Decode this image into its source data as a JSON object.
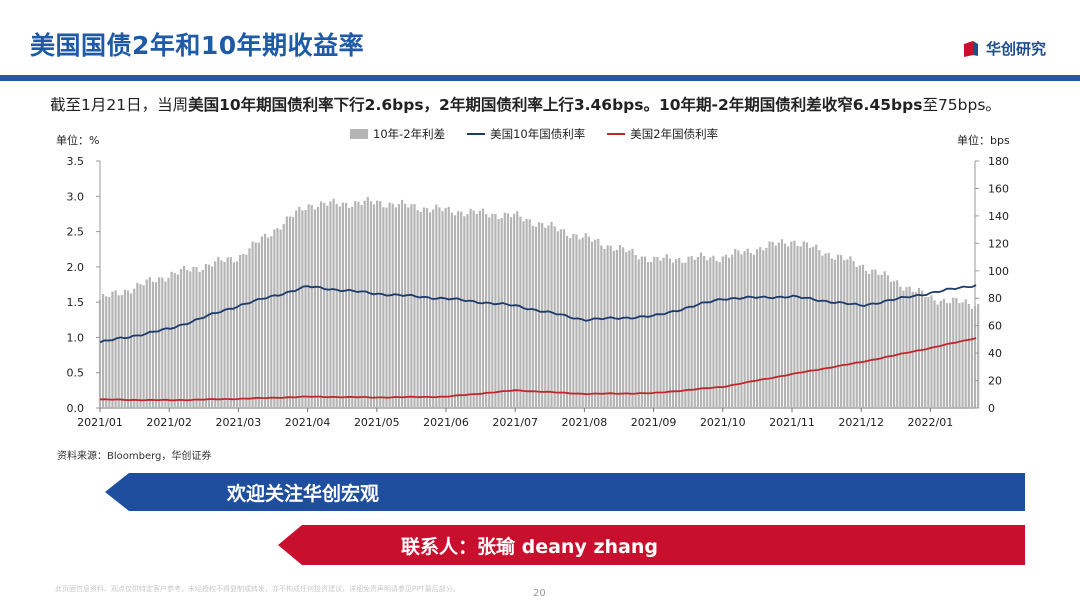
{
  "header": {
    "title": "美国国债2年和10年期收益率",
    "logo_text": "华创研究",
    "accent_color": "#1f5aa6"
  },
  "summary": {
    "part1": "截至1月21日，当周",
    "part2": "美国10年期国债利率下行2.6bps，2年期国债利率上行3.46bps。10年期-2年期国债利差收窄6.45bps",
    "part3": "至75bps。"
  },
  "chart_data": {
    "type": "bar+line",
    "unit_left": "单位：%",
    "unit_right": "单位：bps",
    "legend": [
      "10年-2年利差",
      "美国10年国债利率",
      "美国2年国债利率"
    ],
    "x_tick_labels": [
      "2021/01",
      "2021/02",
      "2021/03",
      "2021/04",
      "2021/05",
      "2021/06",
      "2021/07",
      "2021/08",
      "2021/09",
      "2021/10",
      "2021/11",
      "2021/12",
      "2022/01"
    ],
    "y_left": {
      "ticks": [
        "0.0",
        "0.5",
        "1.0",
        "1.5",
        "2.0",
        "2.5",
        "3.0",
        "3.5"
      ],
      "ylim": [
        0,
        3.5
      ]
    },
    "y_right": {
      "ticks": [
        "0",
        "20",
        "40",
        "60",
        "80",
        "100",
        "120",
        "140",
        "160",
        "180"
      ],
      "ylim": [
        0,
        180
      ]
    },
    "month_points": [
      0,
      1,
      2,
      3,
      4,
      5,
      6,
      7,
      8,
      9,
      10,
      11,
      12,
      12.7
    ],
    "spread_bps": [
      79,
      97,
      110,
      148,
      150,
      144,
      140,
      124,
      108,
      110,
      122,
      104,
      80,
      75
    ],
    "us10y_pct": [
      0.93,
      1.12,
      1.45,
      1.72,
      1.62,
      1.55,
      1.45,
      1.25,
      1.3,
      1.55,
      1.58,
      1.45,
      1.63,
      1.75
    ],
    "us2y_pct": [
      0.12,
      0.11,
      0.13,
      0.16,
      0.15,
      0.16,
      0.25,
      0.2,
      0.21,
      0.3,
      0.48,
      0.65,
      0.85,
      1.0
    ]
  },
  "source": "资料来源：Bloomberg，华创证券",
  "banners": {
    "follow": "欢迎关注华创宏观",
    "contact": "联系人：张瑜 deany zhang",
    "blue": "#1f4e9e",
    "red": "#c8102e"
  },
  "footer": {
    "disclaimer": "此页面信息资料、观点仅供特定客户参考，未经授权不得复制或转发，亦不构成任何投资建议，详细免责声明请参见PPT最后部分。",
    "page_number": "20"
  }
}
